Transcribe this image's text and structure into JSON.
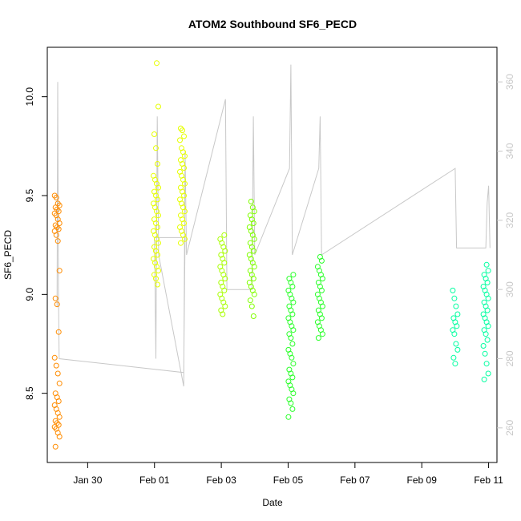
{
  "chart_data": {
    "type": "scatter",
    "title": "ATOM2 Southbound SF6_PECD",
    "xlabel": "Date",
    "ylabel": "SF6_PECD",
    "x_axis_type": "date",
    "xlim": [
      "2016-01-28T19:00",
      "2016-02-11T06:00"
    ],
    "ylim": [
      8.15,
      10.25
    ],
    "xticks": [
      {
        "date": "2016-01-30",
        "label": "Jan 30"
      },
      {
        "date": "2016-02-01",
        "label": "Feb 01"
      },
      {
        "date": "2016-02-03",
        "label": "Feb 03"
      },
      {
        "date": "2016-02-05",
        "label": "Feb 05"
      },
      {
        "date": "2016-02-07",
        "label": "Feb 07"
      },
      {
        "date": "2016-02-09",
        "label": "Feb 09"
      },
      {
        "date": "2016-02-11",
        "label": "Feb 11"
      }
    ],
    "yticks": [
      8.5,
      9.0,
      9.5,
      10.0
    ],
    "y2lim": [
      250,
      370
    ],
    "y2ticks": [
      260,
      280,
      300,
      320,
      340,
      360
    ],
    "y2_color": "#c8c8c8",
    "grid": false,
    "series": [
      {
        "marker": "open-circle",
        "color_scale": [
          "#ff8c00",
          "#ffff00",
          "#80ff00",
          "#00ff40",
          "#00ffc0"
        ],
        "clusters": [
          {
            "t": "2016-01-29T02:00",
            "c": "#ff8c00",
            "pts": [
              9.5,
              9.49,
              9.46,
              9.45,
              9.44,
              9.43,
              9.42,
              9.41,
              9.4,
              9.38,
              9.36,
              9.35,
              9.34,
              9.33,
              9.32,
              9.3,
              9.27,
              9.12,
              8.98,
              8.95,
              8.81,
              8.68,
              8.64,
              8.6,
              8.55,
              8.5,
              8.48,
              8.46,
              8.44,
              8.42,
              8.4,
              8.38,
              8.36,
              8.35,
              8.34,
              8.33,
              8.32,
              8.3,
              8.28,
              8.23
            ]
          },
          {
            "t": "2016-02-01T01:00",
            "c": "#e6ff00",
            "pts": [
              10.17,
              9.95,
              9.81,
              9.74,
              9.66,
              9.6,
              9.58,
              9.56,
              9.54,
              9.52,
              9.5,
              9.48,
              9.46,
              9.44,
              9.42,
              9.4,
              9.38,
              9.36,
              9.34,
              9.32,
              9.3,
              9.28,
              9.26,
              9.24,
              9.22,
              9.2,
              9.18,
              9.16,
              9.14,
              9.12,
              9.1,
              9.08,
              9.05
            ]
          },
          {
            "t": "2016-02-01T20:00",
            "c": "#e6ff00",
            "pts": [
              9.84,
              9.83,
              9.8,
              9.78,
              9.74,
              9.72,
              9.7,
              9.68,
              9.66,
              9.64,
              9.62,
              9.6,
              9.58,
              9.56,
              9.54,
              9.52,
              9.5,
              9.48,
              9.46,
              9.44,
              9.42,
              9.4,
              9.38,
              9.36,
              9.34,
              9.32,
              9.3,
              9.28,
              9.26
            ]
          },
          {
            "t": "2016-02-03T01:00",
            "c": "#a8ff00",
            "pts": [
              9.3,
              9.28,
              9.26,
              9.24,
              9.22,
              9.2,
              9.18,
              9.16,
              9.14,
              9.12,
              9.1,
              9.08,
              9.06,
              9.04,
              9.02,
              9.0,
              8.98,
              8.96,
              8.94,
              8.92,
              8.9
            ]
          },
          {
            "t": "2016-02-03T22:00",
            "c": "#80ff00",
            "pts": [
              9.47,
              9.44,
              9.42,
              9.4,
              9.38,
              9.36,
              9.34,
              9.32,
              9.3,
              9.28,
              9.26,
              9.24,
              9.22,
              9.2,
              9.18,
              9.16,
              9.14,
              9.12,
              9.1,
              9.08,
              9.06,
              9.04,
              9.02,
              9.0,
              8.97,
              8.94,
              8.89
            ]
          },
          {
            "t": "2016-02-05T02:00",
            "c": "#28ff28",
            "pts": [
              9.1,
              9.08,
              9.06,
              9.04,
              9.02,
              9.0,
              8.98,
              8.96,
              8.94,
              8.92,
              8.9,
              8.88,
              8.86,
              8.84,
              8.82,
              8.8,
              8.78,
              8.75,
              8.72,
              8.7,
              8.68,
              8.65,
              8.62,
              8.6,
              8.58,
              8.56,
              8.54,
              8.52,
              8.5,
              8.47,
              8.45,
              8.42,
              8.38
            ]
          },
          {
            "t": "2016-02-05T23:00",
            "c": "#28ff28",
            "pts": [
              9.19,
              9.17,
              9.14,
              9.12,
              9.1,
              9.08,
              9.06,
              9.04,
              9.02,
              9.0,
              8.98,
              8.96,
              8.94,
              8.92,
              8.9,
              8.88,
              8.86,
              8.84,
              8.82,
              8.8,
              8.78
            ]
          },
          {
            "t": "2016-02-10T00:00",
            "c": "#00ffa0",
            "pts": [
              9.02,
              8.98,
              8.94,
              8.9,
              8.88,
              8.86,
              8.84,
              8.82,
              8.8,
              8.75,
              8.72,
              8.68,
              8.65
            ]
          },
          {
            "t": "2016-02-10T22:00",
            "c": "#00ffa0",
            "pts": [
              9.15,
              9.12,
              9.1,
              9.08,
              9.06,
              9.04,
              9.02,
              9.0,
              8.98,
              8.96,
              8.94,
              8.92,
              8.9,
              8.88,
              8.86,
              8.84,
              8.82,
              8.8,
              8.77,
              8.74,
              8.7,
              8.65,
              8.6,
              8.57
            ]
          }
        ]
      },
      {
        "type": "line",
        "axis": "right",
        "color": "#c8c8c8",
        "points": [
          [
            "2016-01-29T02:00",
            295
          ],
          [
            "2016-01-29T02:30",
            360
          ],
          [
            "2016-01-29T03:00",
            300
          ],
          [
            "2016-01-29T03:30",
            280
          ],
          [
            "2016-02-01T21:00",
            276
          ],
          [
            "2016-02-01T22:00",
            315
          ],
          [
            "2016-02-01T00:00",
            315
          ],
          [
            "2016-02-01T01:00",
            280
          ],
          [
            "2016-02-01T02:00",
            350
          ],
          [
            "2016-02-01T03:00",
            310
          ],
          [
            "2016-02-01T21:00",
            272
          ],
          [
            "2016-02-01T22:00",
            340
          ],
          [
            "2016-02-01T23:00",
            310
          ],
          [
            "2016-02-03T03:00",
            355
          ],
          [
            "2016-02-03T04:00",
            300
          ],
          [
            "2016-02-03T22:00",
            300
          ],
          [
            "2016-02-03T23:00",
            350
          ],
          [
            "2016-02-04T00:00",
            310
          ],
          [
            "2016-02-05T01:00",
            335
          ],
          [
            "2016-02-05T02:00",
            365
          ],
          [
            "2016-02-05T03:00",
            310
          ],
          [
            "2016-02-05T22:00",
            335
          ],
          [
            "2016-02-05T23:00",
            350
          ],
          [
            "2016-02-06T00:00",
            310
          ],
          [
            "2016-02-10T00:00",
            335
          ],
          [
            "2016-02-10T01:00",
            312
          ],
          [
            "2016-02-10T22:00",
            312
          ],
          [
            "2016-02-10T23:00",
            325
          ],
          [
            "2016-02-11T00:00",
            330
          ],
          [
            "2016-02-11T01:00",
            312
          ]
        ]
      }
    ]
  }
}
